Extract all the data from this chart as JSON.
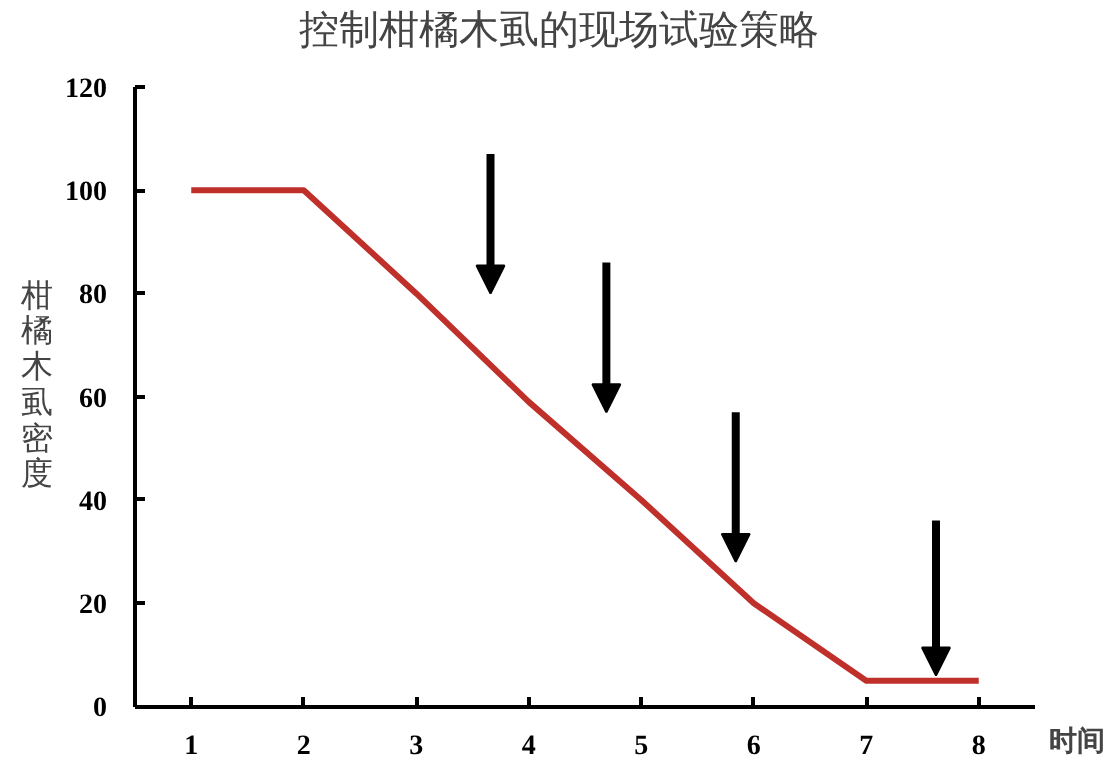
{
  "chart_data": {
    "type": "line",
    "title": "控制柑橘木虱的现场试验策略",
    "xlabel": "时间",
    "ylabel": "柑橘木虱密度",
    "categories": [
      "1",
      "2",
      "3",
      "4",
      "5",
      "6",
      "7",
      "8"
    ],
    "series": [
      {
        "color": "#c0302b",
        "values": [
          100,
          100,
          80,
          59,
          40,
          20,
          5,
          5
        ]
      }
    ],
    "ylim": [
      0,
      120
    ],
    "yticks": [
      0,
      20,
      40,
      60,
      80,
      100,
      120
    ],
    "grid": false,
    "marker": "none",
    "line_style": "solid"
  }
}
